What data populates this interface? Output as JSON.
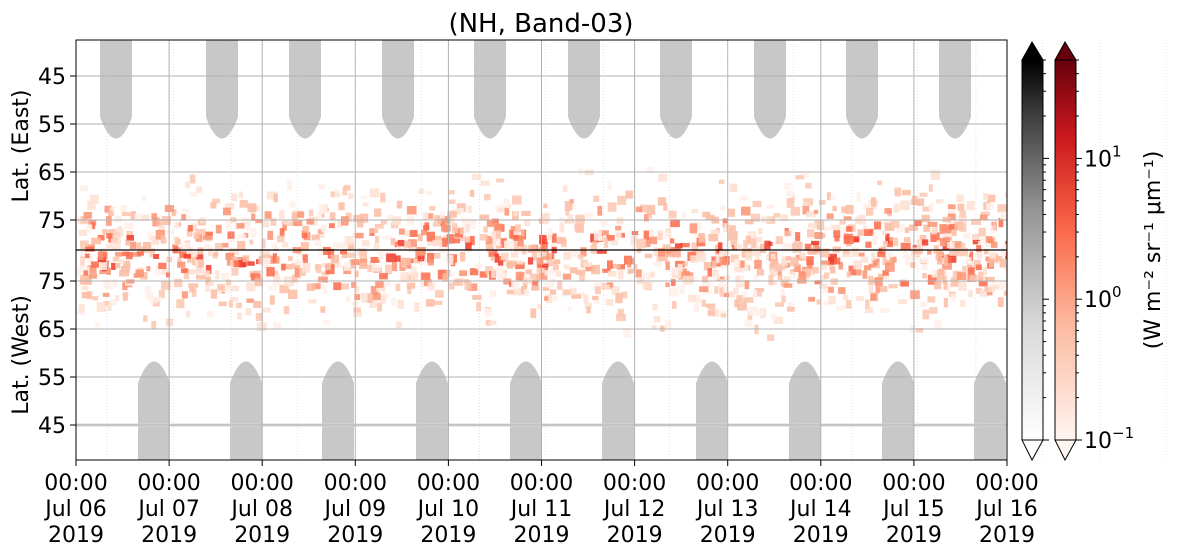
{
  "chart_data": {
    "type": "heatmap",
    "title": "(NH, Band-03)",
    "panels": [
      {
        "name": "east",
        "ylabel": "Lat. (East)",
        "yticks": [
          "45",
          "55",
          "65",
          "75"
        ]
      },
      {
        "name": "west",
        "ylabel": "Lat. (West)",
        "yticks": [
          "75",
          "65",
          "55",
          "45"
        ]
      }
    ],
    "x_ticks": [
      {
        "time": "00:00",
        "date": "Jul 06",
        "year": "2019"
      },
      {
        "time": "00:00",
        "date": "Jul 07",
        "year": "2019"
      },
      {
        "time": "00:00",
        "date": "Jul 08",
        "year": "2019"
      },
      {
        "time": "00:00",
        "date": "Jul 09",
        "year": "2019"
      },
      {
        "time": "00:00",
        "date": "Jul 10",
        "year": "2019"
      },
      {
        "time": "00:00",
        "date": "Jul 11",
        "year": "2019"
      },
      {
        "time": "00:00",
        "date": "Jul 12",
        "year": "2019"
      },
      {
        "time": "00:00",
        "date": "Jul 13",
        "year": "2019"
      },
      {
        "time": "00:00",
        "date": "Jul 14",
        "year": "2019"
      },
      {
        "time": "00:00",
        "date": "Jul 15",
        "year": "2019"
      },
      {
        "time": "00:00",
        "date": "Jul 16",
        "year": "2019"
      }
    ],
    "colorbar": {
      "label": "(W m⁻² sr⁻¹ μm⁻¹)",
      "scale": "log",
      "range": [
        0.1,
        50
      ],
      "ticks": [
        {
          "base": "10",
          "exp": "−1",
          "value": 0.1
        },
        {
          "base": "10",
          "exp": "0",
          "value": 1
        },
        {
          "base": "10",
          "exp": "1",
          "value": 10
        }
      ],
      "colormaps": [
        "Greys",
        "Reds"
      ]
    },
    "grid": true,
    "colors": {
      "night_mask": "#c8c8c8",
      "emission_low": "#fee0d2",
      "emission_high": "#ef3b2c",
      "grid": "#b0b0b0"
    }
  }
}
